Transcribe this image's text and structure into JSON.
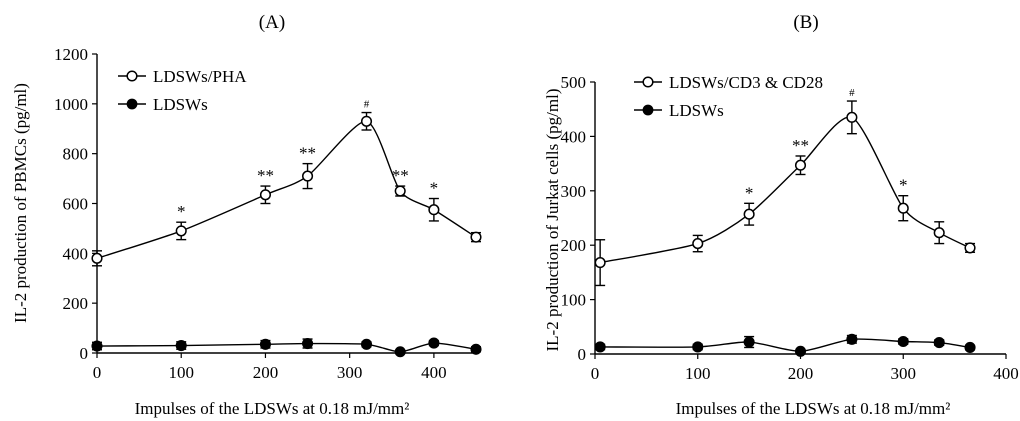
{
  "chart_data": [
    {
      "type": "line",
      "panel_label": "(A)",
      "xlabel": "Impulses of the LDSWs at 0.18 mJ/mm²",
      "ylabel": "IL-2 production of PBMCs  (pg/ml)",
      "xlim": [
        0,
        450
      ],
      "ylim": [
        0,
        1200
      ],
      "xticks": [
        0,
        100,
        200,
        300,
        400
      ],
      "yticks": [
        0,
        200,
        400,
        600,
        800,
        1000,
        1200
      ],
      "legend_position": "top-left",
      "series": [
        {
          "name": "LDSWs/PHA",
          "marker": "open-circle",
          "x": [
            0,
            100,
            200,
            250,
            320,
            360,
            400,
            450
          ],
          "y": [
            380,
            490,
            635,
            710,
            930,
            650,
            575,
            465
          ],
          "err": [
            30,
            35,
            35,
            50,
            35,
            20,
            45,
            18
          ],
          "annotations": [
            "",
            "*",
            "**",
            "**",
            "#",
            "**",
            "*",
            ""
          ]
        },
        {
          "name": "LDSWs",
          "marker": "filled-circle",
          "x": [
            0,
            100,
            200,
            250,
            320,
            360,
            400,
            450
          ],
          "y": [
            28,
            30,
            35,
            38,
            35,
            5,
            40,
            15
          ],
          "err": [
            15,
            15,
            15,
            18,
            10,
            5,
            10,
            10
          ],
          "annotations": []
        }
      ]
    },
    {
      "type": "line",
      "panel_label": "(B)",
      "xlabel": "Impulses of the LDSWs at 0.18 mJ/mm²",
      "ylabel": "IL-2 production of Jurkat cells (pg/ml)",
      "xlim": [
        0,
        400
      ],
      "ylim": [
        0,
        500
      ],
      "xticks": [
        0,
        100,
        200,
        300,
        400
      ],
      "yticks": [
        0,
        100,
        200,
        300,
        400,
        500
      ],
      "legend_position": "top-left",
      "series": [
        {
          "name": "LDSWs/CD3 & CD28",
          "marker": "open-circle",
          "x": [
            5,
            100,
            150,
            200,
            250,
            300,
            335,
            365
          ],
          "y": [
            168,
            203,
            257,
            347,
            435,
            268,
            223,
            195
          ],
          "err": [
            42,
            15,
            20,
            17,
            30,
            23,
            20,
            8
          ],
          "annotations": [
            "",
            "",
            "*",
            "**",
            "#",
            "*",
            "",
            ""
          ]
        },
        {
          "name": "LDSWs",
          "marker": "filled-circle",
          "x": [
            5,
            100,
            150,
            200,
            250,
            300,
            335,
            365
          ],
          "y": [
            13,
            13,
            22,
            5,
            27,
            23,
            21,
            12
          ],
          "err": [
            5,
            5,
            10,
            3,
            7,
            5,
            5,
            4
          ],
          "annotations": []
        }
      ]
    }
  ]
}
